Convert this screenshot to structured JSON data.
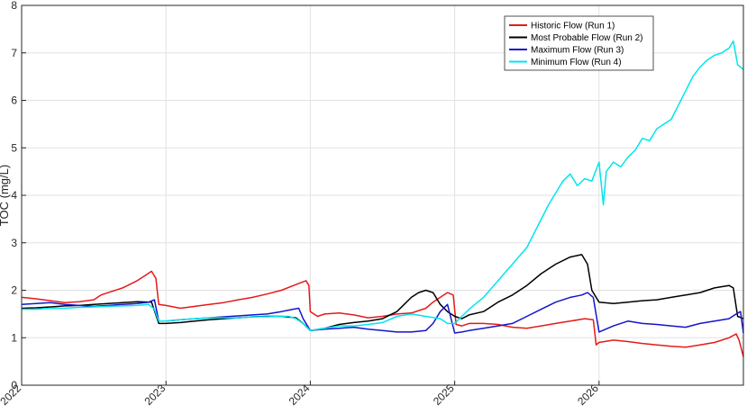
{
  "chart_data": {
    "type": "line",
    "title": "",
    "xlabel": "",
    "ylabel": "TOC (mg/L)",
    "xlim": [
      2022,
      2027
    ],
    "ylim": [
      0,
      8
    ],
    "x_ticks": [
      "2022",
      "2023",
      "2024",
      "2025",
      "2026"
    ],
    "x_tick_values": [
      2022,
      2023,
      2024,
      2025,
      2026
    ],
    "y_ticks": [
      0,
      1,
      2,
      3,
      4,
      5,
      6,
      7,
      8
    ],
    "grid": true,
    "legend_position": "top-right",
    "series": [
      {
        "name": "Historic Flow (Run 1)",
        "color": "#e41a1a",
        "x": [
          2022.0,
          2022.1,
          2022.2,
          2022.3,
          2022.4,
          2022.5,
          2022.55,
          2022.6,
          2022.7,
          2022.8,
          2022.85,
          2022.9,
          2022.93,
          2022.95,
          2023.0,
          2023.1,
          2023.2,
          2023.3,
          2023.4,
          2023.5,
          2023.6,
          2023.7,
          2023.8,
          2023.9,
          2023.97,
          2023.99,
          2024.0,
          2024.05,
          2024.1,
          2024.2,
          2024.3,
          2024.4,
          2024.5,
          2024.6,
          2024.7,
          2024.8,
          2024.85,
          2024.9,
          2024.95,
          2024.99,
          2025.01,
          2025.05,
          2025.1,
          2025.2,
          2025.3,
          2025.4,
          2025.5,
          2025.6,
          2025.7,
          2025.8,
          2025.9,
          2025.96,
          2025.98,
          2026.0,
          2026.1,
          2026.2,
          2026.3,
          2026.4,
          2026.5,
          2026.6,
          2026.7,
          2026.8,
          2026.9,
          2026.95,
          2026.97,
          2027.0
        ],
        "y": [
          1.85,
          1.82,
          1.78,
          1.74,
          1.76,
          1.8,
          1.9,
          1.95,
          2.05,
          2.2,
          2.3,
          2.4,
          2.25,
          1.7,
          1.68,
          1.62,
          1.66,
          1.7,
          1.74,
          1.8,
          1.85,
          1.92,
          2.0,
          2.12,
          2.2,
          2.1,
          1.55,
          1.45,
          1.5,
          1.52,
          1.48,
          1.42,
          1.45,
          1.5,
          1.52,
          1.62,
          1.75,
          1.85,
          1.95,
          1.9,
          1.28,
          1.25,
          1.3,
          1.3,
          1.28,
          1.22,
          1.2,
          1.25,
          1.3,
          1.35,
          1.4,
          1.38,
          0.85,
          0.9,
          0.95,
          0.92,
          0.88,
          0.85,
          0.82,
          0.8,
          0.85,
          0.9,
          1.0,
          1.08,
          0.95,
          0.6
        ]
      },
      {
        "name": "Most Probable Flow (Run 2)",
        "color": "#000000",
        "x": [
          2022.0,
          2022.1,
          2022.2,
          2022.3,
          2022.4,
          2022.5,
          2022.6,
          2022.7,
          2022.8,
          2022.9,
          2022.95,
          2023.0,
          2023.1,
          2023.2,
          2023.3,
          2023.4,
          2023.5,
          2023.6,
          2023.7,
          2023.8,
          2023.9,
          2023.95,
          2024.0,
          2024.1,
          2024.2,
          2024.3,
          2024.4,
          2024.5,
          2024.6,
          2024.65,
          2024.7,
          2024.75,
          2024.8,
          2024.85,
          2024.9,
          2024.95,
          2025.0,
          2025.05,
          2025.1,
          2025.2,
          2025.3,
          2025.4,
          2025.5,
          2025.6,
          2025.7,
          2025.8,
          2025.88,
          2025.92,
          2025.95,
          2026.0,
          2026.1,
          2026.2,
          2026.3,
          2026.4,
          2026.5,
          2026.6,
          2026.7,
          2026.8,
          2026.9,
          2026.93,
          2026.96,
          2027.0
        ],
        "y": [
          1.62,
          1.63,
          1.65,
          1.67,
          1.68,
          1.7,
          1.72,
          1.74,
          1.76,
          1.75,
          1.3,
          1.3,
          1.32,
          1.35,
          1.38,
          1.4,
          1.42,
          1.44,
          1.45,
          1.45,
          1.42,
          1.3,
          1.15,
          1.2,
          1.28,
          1.32,
          1.35,
          1.4,
          1.55,
          1.7,
          1.85,
          1.95,
          2.0,
          1.95,
          1.7,
          1.55,
          1.45,
          1.4,
          1.48,
          1.55,
          1.75,
          1.9,
          2.1,
          2.35,
          2.55,
          2.7,
          2.75,
          2.55,
          2.0,
          1.75,
          1.72,
          1.75,
          1.78,
          1.8,
          1.85,
          1.9,
          1.95,
          2.05,
          2.1,
          2.05,
          1.45,
          1.4
        ]
      },
      {
        "name": "Maximum Flow (Run 3)",
        "color": "#1414cc",
        "x": [
          2022.0,
          2022.1,
          2022.2,
          2022.3,
          2022.4,
          2022.5,
          2022.6,
          2022.7,
          2022.8,
          2022.88,
          2022.92,
          2022.95,
          2023.0,
          2023.1,
          2023.2,
          2023.3,
          2023.4,
          2023.5,
          2023.6,
          2023.7,
          2023.8,
          2023.88,
          2023.92,
          2023.95,
          2024.0,
          2024.1,
          2024.2,
          2024.3,
          2024.4,
          2024.5,
          2024.6,
          2024.7,
          2024.8,
          2024.85,
          2024.9,
          2024.95,
          2025.0,
          2025.05,
          2025.1,
          2025.2,
          2025.3,
          2025.4,
          2025.5,
          2025.6,
          2025.7,
          2025.8,
          2025.88,
          2025.92,
          2025.96,
          2026.0,
          2026.1,
          2026.2,
          2026.3,
          2026.4,
          2026.5,
          2026.6,
          2026.7,
          2026.8,
          2026.9,
          2026.95,
          2026.98,
          2027.0
        ],
        "y": [
          1.7,
          1.72,
          1.74,
          1.7,
          1.68,
          1.66,
          1.68,
          1.7,
          1.72,
          1.75,
          1.8,
          1.35,
          1.35,
          1.38,
          1.4,
          1.42,
          1.44,
          1.46,
          1.48,
          1.5,
          1.55,
          1.6,
          1.62,
          1.4,
          1.15,
          1.18,
          1.2,
          1.22,
          1.18,
          1.15,
          1.12,
          1.12,
          1.15,
          1.3,
          1.55,
          1.7,
          1.1,
          1.12,
          1.15,
          1.2,
          1.25,
          1.3,
          1.45,
          1.6,
          1.75,
          1.85,
          1.9,
          1.95,
          1.85,
          1.12,
          1.25,
          1.35,
          1.3,
          1.28,
          1.25,
          1.22,
          1.3,
          1.35,
          1.4,
          1.5,
          1.55,
          1.1
        ]
      },
      {
        "name": "Minimum Flow (Run 4)",
        "color": "#00e5ee",
        "x": [
          2022.0,
          2022.1,
          2022.2,
          2022.3,
          2022.4,
          2022.5,
          2022.6,
          2022.7,
          2022.8,
          2022.88,
          2022.92,
          2022.95,
          2023.0,
          2023.1,
          2023.2,
          2023.3,
          2023.4,
          2023.5,
          2023.6,
          2023.7,
          2023.8,
          2023.85,
          2023.9,
          2023.95,
          2024.0,
          2024.1,
          2024.2,
          2024.3,
          2024.4,
          2024.5,
          2024.6,
          2024.7,
          2024.8,
          2024.9,
          2024.95,
          2025.0,
          2025.05,
          2025.1,
          2025.2,
          2025.3,
          2025.4,
          2025.5,
          2025.55,
          2025.6,
          2025.65,
          2025.7,
          2025.75,
          2025.8,
          2025.85,
          2025.9,
          2025.95,
          2026.0,
          2026.03,
          2026.05,
          2026.1,
          2026.15,
          2026.2,
          2026.25,
          2026.3,
          2026.35,
          2026.4,
          2026.45,
          2026.5,
          2026.55,
          2026.6,
          2026.65,
          2026.7,
          2026.75,
          2026.8,
          2026.85,
          2026.9,
          2026.93,
          2026.96,
          2027.0
        ],
        "y": [
          1.6,
          1.6,
          1.62,
          1.62,
          1.64,
          1.65,
          1.66,
          1.67,
          1.68,
          1.7,
          1.6,
          1.35,
          1.35,
          1.38,
          1.4,
          1.42,
          1.42,
          1.42,
          1.44,
          1.44,
          1.45,
          1.45,
          1.4,
          1.3,
          1.15,
          1.2,
          1.25,
          1.25,
          1.28,
          1.32,
          1.45,
          1.5,
          1.45,
          1.4,
          1.3,
          1.3,
          1.45,
          1.6,
          1.85,
          2.2,
          2.55,
          2.9,
          3.2,
          3.5,
          3.8,
          4.05,
          4.3,
          4.45,
          4.2,
          4.35,
          4.3,
          4.7,
          3.8,
          4.5,
          4.7,
          4.6,
          4.8,
          4.95,
          5.2,
          5.15,
          5.4,
          5.5,
          5.6,
          5.9,
          6.2,
          6.5,
          6.7,
          6.85,
          6.95,
          7.0,
          7.1,
          7.25,
          6.75,
          6.65
        ]
      }
    ]
  }
}
